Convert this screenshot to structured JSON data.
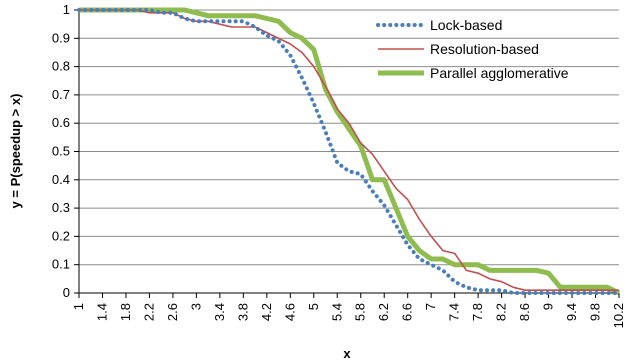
{
  "chart_data": {
    "type": "line",
    "xlabel": "x",
    "ylabel": "y = P(speedup > x)",
    "ylim": [
      0,
      1
    ],
    "y_ticks": [
      "0",
      "0.1",
      "0.2",
      "0.3",
      "0.4",
      "0.5",
      "0.6",
      "0.7",
      "0.8",
      "0.9",
      "1"
    ],
    "categories": [
      "1",
      "1.4",
      "1.8",
      "2.2",
      "2.6",
      "3",
      "3.4",
      "3.8",
      "4.2",
      "4.6",
      "5",
      "5.4",
      "5.8",
      "6.2",
      "6.6",
      "7",
      "7.4",
      "7.8",
      "8.2",
      "8.6",
      "9",
      "9.4",
      "9.8",
      "10.2"
    ],
    "x": [
      1,
      1.2,
      1.4,
      1.6,
      1.8,
      2,
      2.2,
      2.4,
      2.6,
      2.8,
      3,
      3.2,
      3.4,
      3.6,
      3.8,
      4,
      4.2,
      4.4,
      4.6,
      4.8,
      5,
      5.2,
      5.4,
      5.6,
      5.8,
      6,
      6.2,
      6.4,
      6.6,
      6.8,
      7,
      7.2,
      7.4,
      7.6,
      7.8,
      8,
      8.2,
      8.4,
      8.6,
      8.8,
      9,
      9.2,
      9.4,
      9.6,
      9.8,
      10,
      10.2
    ],
    "grid": true,
    "legend_position": "top-right",
    "series": [
      {
        "name": "Lock-based",
        "color": "#4a7ebb",
        "style": "dotted",
        "values": [
          1,
          1,
          1,
          1,
          1,
          1,
          1,
          0.99,
          0.99,
          0.97,
          0.96,
          0.96,
          0.96,
          0.96,
          0.96,
          0.94,
          0.91,
          0.89,
          0.84,
          0.76,
          0.67,
          0.57,
          0.46,
          0.43,
          0.42,
          0.36,
          0.31,
          0.24,
          0.17,
          0.12,
          0.1,
          0.08,
          0.04,
          0.02,
          0.01,
          0.01,
          0.01,
          0,
          0,
          0,
          0,
          0,
          0,
          0,
          0,
          0,
          0
        ]
      },
      {
        "name": "Resolution-based",
        "color": "#c0504d",
        "style": "solid",
        "values": [
          1,
          1,
          1,
          1,
          1,
          1,
          0.99,
          0.99,
          0.99,
          0.97,
          0.96,
          0.96,
          0.95,
          0.94,
          0.94,
          0.94,
          0.92,
          0.9,
          0.88,
          0.85,
          0.8,
          0.73,
          0.65,
          0.6,
          0.53,
          0.49,
          0.43,
          0.37,
          0.33,
          0.26,
          0.2,
          0.15,
          0.14,
          0.08,
          0.07,
          0.05,
          0.04,
          0.02,
          0.01,
          0.01,
          0.01,
          0.01,
          0.01,
          0.01,
          0.01,
          0.01,
          0.01
        ]
      },
      {
        "name": "Parallel agglomerative",
        "color": "#8fbc4f",
        "style": "thick",
        "values": [
          1,
          1,
          1,
          1,
          1,
          1,
          1,
          1,
          1,
          1,
          0.99,
          0.98,
          0.98,
          0.98,
          0.98,
          0.98,
          0.97,
          0.96,
          0.92,
          0.9,
          0.86,
          0.72,
          0.64,
          0.58,
          0.52,
          0.4,
          0.4,
          0.3,
          0.2,
          0.15,
          0.12,
          0.12,
          0.1,
          0.1,
          0.1,
          0.08,
          0.08,
          0.08,
          0.08,
          0.08,
          0.07,
          0.02,
          0.02,
          0.02,
          0.02,
          0.02,
          0
        ]
      }
    ]
  }
}
